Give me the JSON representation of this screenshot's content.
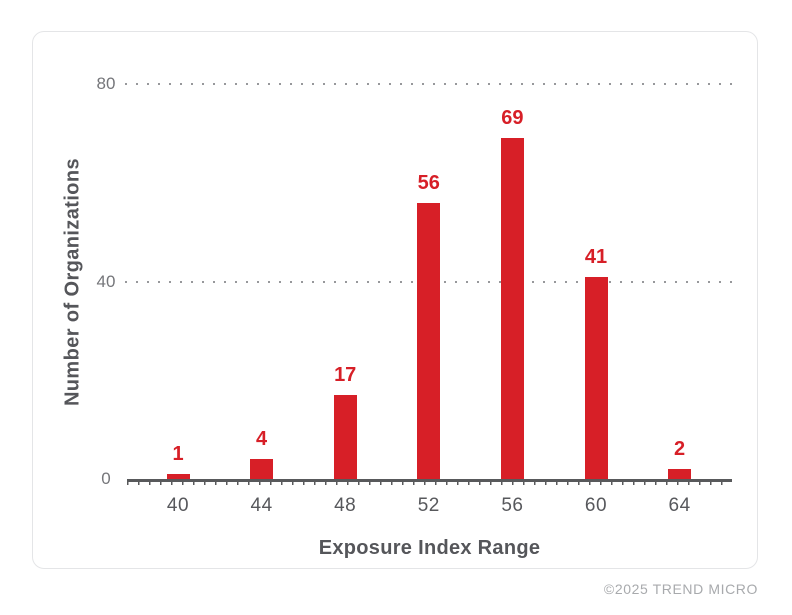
{
  "chart_data": {
    "type": "bar",
    "title": "",
    "categories": [
      "40",
      "44",
      "48",
      "52",
      "56",
      "60",
      "64"
    ],
    "values": [
      1,
      4,
      17,
      56,
      69,
      41,
      2
    ],
    "value_labels": [
      "1",
      "4",
      "17",
      "56",
      "69",
      "41",
      "2"
    ],
    "xlabel": "Exposure Index Range",
    "ylabel": "Number of Organizations",
    "yticks": [
      0,
      40,
      80
    ],
    "ytick_labels": [
      "0",
      "40",
      "80"
    ],
    "ylim": [
      0,
      80
    ],
    "grid": "horizontal dotted lines at y=40 and y=80",
    "legend": "none",
    "colors": {
      "bar": "#d71f27",
      "value_label": "#d71f27",
      "axis_line": "#58595b",
      "axis_title_text": "#55565a",
      "x_tick_text": "#57585c",
      "y_tick_text": "#75767a",
      "gridline_dots": "#97989b",
      "card_border": "#e4e5e7",
      "background": "#ffffff"
    }
  },
  "footer": {
    "credit": "©2025 TREND MICRO"
  }
}
